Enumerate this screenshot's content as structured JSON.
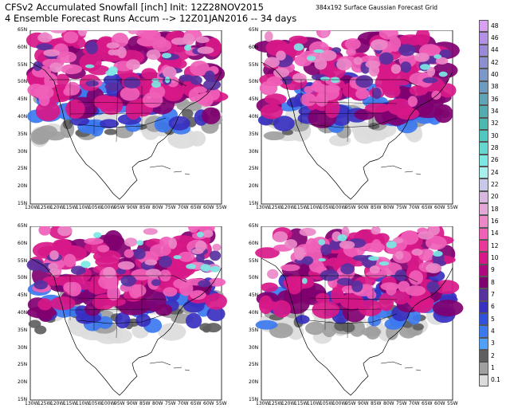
{
  "header": {
    "title_line1": "CFSv2 Accumulated Snowfall [inch] Init: 12Z28NOV2015",
    "title_line2": "4 Ensemble Forecast Runs Accum --> 12Z01JAN2016 -- 34 days",
    "grid_note": "384x192 Surface Gaussian Forecast Grid"
  },
  "axes": {
    "lat_labels": [
      "65N",
      "60N",
      "55N",
      "50N",
      "45N",
      "40N",
      "35N",
      "30N",
      "25N",
      "20N",
      "15N"
    ],
    "lon_labels": [
      "130W",
      "125W",
      "120W",
      "115W",
      "110W",
      "105W",
      "100W",
      "95W",
      "90W",
      "85W",
      "80W",
      "75W",
      "70W",
      "65W",
      "60W",
      "55W"
    ]
  },
  "panels": [
    {
      "id": "run-1",
      "position": "top-left"
    },
    {
      "id": "run-2",
      "position": "top-right"
    },
    {
      "id": "run-3",
      "position": "bottom-left"
    },
    {
      "id": "run-4",
      "position": "bottom-right"
    }
  ],
  "colorbar": {
    "labels": [
      "48",
      "46",
      "44",
      "42",
      "40",
      "38",
      "36",
      "34",
      "32",
      "30",
      "28",
      "26",
      "24",
      "22",
      "20",
      "18",
      "16",
      "14",
      "12",
      "10",
      "9",
      "8",
      "7",
      "6",
      "5",
      "4",
      "3",
      "2",
      "1",
      "0.1"
    ],
    "colors": [
      "#d8a0f0",
      "#b490e8",
      "#9a88d8",
      "#8c90d0",
      "#7c98c8",
      "#6e9cc0",
      "#60a4b8",
      "#54acb0",
      "#4cb8b0",
      "#50c8c0",
      "#64d8d0",
      "#7ce8e4",
      "#a8f0ec",
      "#c8c8e8",
      "#d8b8e0",
      "#e4a8d8",
      "#ec88c8",
      "#f060b8",
      "#e83898",
      "#d81888",
      "#b00880",
      "#800070",
      "#5830a0",
      "#3830c0",
      "#3050e0",
      "#3c78f0",
      "#50a0f8",
      "#606060",
      "#a0a0a0",
      "#dcdcdc"
    ]
  }
}
